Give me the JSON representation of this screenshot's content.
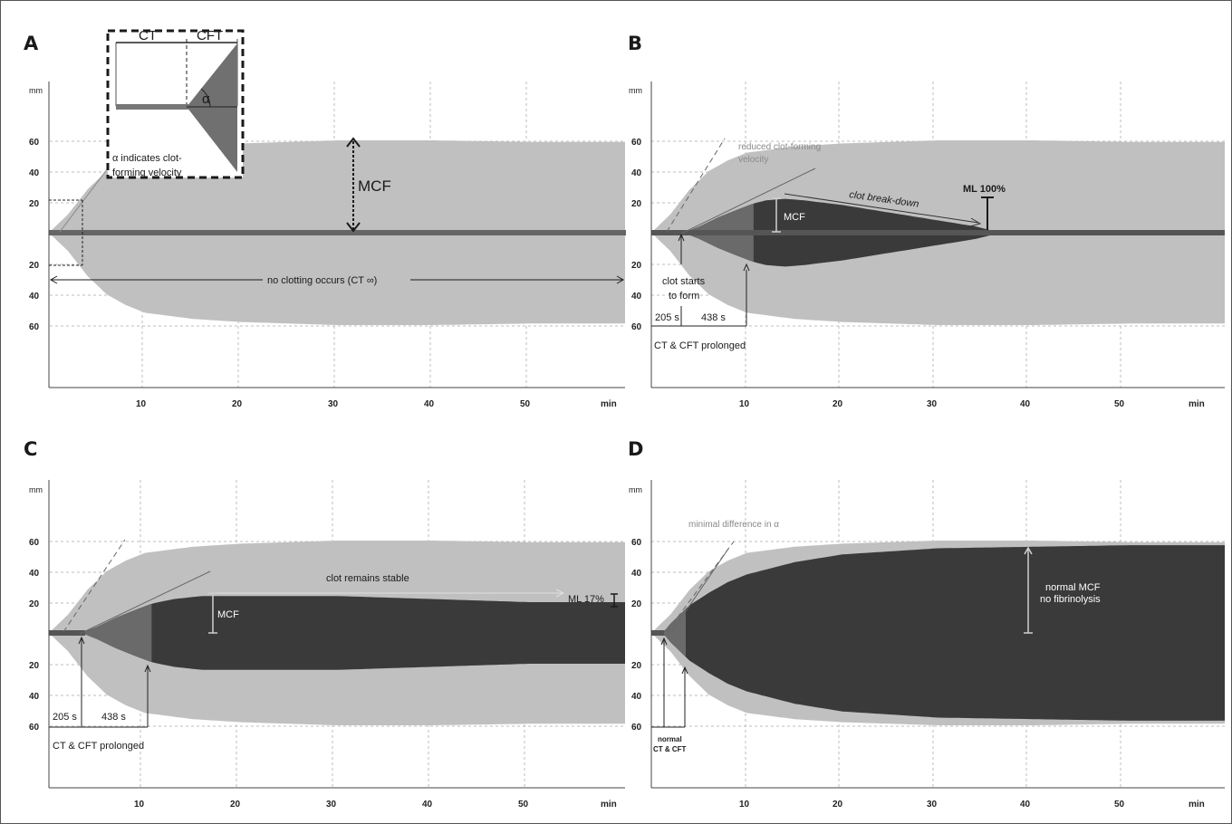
{
  "colors": {
    "envelope": "#c0c0c0",
    "clot": "#3a3a3a",
    "formation": "#6a6a6a",
    "baseline": "#555555",
    "grid": "#bdbdbd"
  },
  "chart_data": [
    {
      "type": "area",
      "panel": "A",
      "unit_y": "mm",
      "unit_x": "min",
      "x_ticks": [
        "10",
        "20",
        "30",
        "40",
        "50"
      ],
      "y_ticks_upper": [
        "60",
        "40",
        "20"
      ],
      "y_ticks_lower": [
        "20",
        "40",
        "60"
      ],
      "xlim": [
        0,
        60
      ],
      "ylim": [
        -60,
        60
      ],
      "series": [
        {
          "name": "",
          "role": "normal-envelope",
          "x": [
            0,
            2,
            4,
            6,
            8,
            10,
            15,
            20,
            25,
            30,
            40,
            50,
            60
          ],
          "amplitude": [
            0,
            12,
            28,
            40,
            47,
            52,
            56,
            58,
            59,
            60,
            60,
            59,
            59
          ]
        },
        {
          "name": "",
          "role": "patient",
          "x": [
            0,
            60
          ],
          "amplitude": [
            0,
            0
          ]
        }
      ],
      "labels": {
        "inset_ct": "CT",
        "inset_cft": "CFT",
        "inset_alpha": "α",
        "alpha_note_1": "α indicates clot-",
        "alpha_note_2": "forming  velocity",
        "mcf": "MCF",
        "no_clot": "no clotting occurs (CT ∞)"
      }
    },
    {
      "type": "area",
      "panel": "B",
      "unit_y": "mm",
      "unit_x": "min",
      "x_ticks": [
        "10",
        "20",
        "30",
        "40",
        "50"
      ],
      "y_ticks_upper": [
        "60",
        "40",
        "20"
      ],
      "y_ticks_lower": [
        "20",
        "40",
        "60"
      ],
      "xlim": [
        0,
        60
      ],
      "ylim": [
        -60,
        60
      ],
      "ct_s": 205,
      "cft_s": 438,
      "ml_percent": 100,
      "series": [
        {
          "name": "",
          "role": "normal-envelope",
          "x": [
            0,
            2,
            4,
            6,
            8,
            10,
            15,
            20,
            25,
            30,
            40,
            50,
            60
          ],
          "amplitude": [
            0,
            12,
            28,
            40,
            47,
            52,
            56,
            58,
            59,
            60,
            60,
            59,
            59
          ]
        },
        {
          "name": "",
          "role": "patient",
          "x": [
            0,
            3.4,
            5,
            7,
            9,
            10.7,
            12,
            14,
            16,
            20,
            25,
            30,
            34,
            36.5,
            60
          ],
          "amplitude": [
            0,
            0,
            4,
            10,
            15,
            19,
            21,
            22,
            21,
            18,
            13,
            8,
            4,
            0,
            0
          ]
        }
      ],
      "labels": {
        "reduced_1": "reduced clot-forming",
        "reduced_2": "velocity",
        "mcf": "MCF",
        "breakdown": "clot break-down",
        "ml": "ML 100%",
        "starts_1": "clot starts",
        "starts_2": "to form",
        "ct_box": "205 s",
        "cft_box": "438 s",
        "prolonged": "CT & CFT prolonged"
      }
    },
    {
      "type": "area",
      "panel": "C",
      "unit_y": "mm",
      "unit_x": "min",
      "x_ticks": [
        "10",
        "20",
        "30",
        "40",
        "50"
      ],
      "y_ticks_upper": [
        "60",
        "40",
        "20"
      ],
      "y_ticks_lower": [
        "20",
        "40",
        "60"
      ],
      "xlim": [
        0,
        60
      ],
      "ylim": [
        -60,
        60
      ],
      "ct_s": 205,
      "cft_s": 438,
      "ml_percent": 17,
      "series": [
        {
          "name": "",
          "role": "normal-envelope",
          "x": [
            0,
            2,
            4,
            6,
            8,
            10,
            15,
            20,
            25,
            30,
            40,
            50,
            60
          ],
          "amplitude": [
            0,
            12,
            28,
            40,
            47,
            52,
            56,
            58,
            59,
            60,
            60,
            59,
            59
          ]
        },
        {
          "name": "",
          "role": "patient",
          "x": [
            0,
            3.4,
            5,
            7,
            9,
            10.7,
            13,
            16,
            20,
            25,
            30,
            35,
            40,
            45,
            50,
            55,
            60
          ],
          "amplitude": [
            0,
            0,
            4,
            10,
            15,
            19,
            22,
            24,
            24,
            24,
            24,
            23,
            22,
            21,
            20,
            20,
            20
          ]
        }
      ],
      "labels": {
        "stable": "clot remains stable",
        "mcf": "MCF",
        "ml": "ML 17%",
        "ct_box": "205 s",
        "cft_box": "438 s",
        "prolonged": "CT & CFT prolonged"
      }
    },
    {
      "type": "area",
      "panel": "D",
      "unit_y": "mm",
      "unit_x": "min",
      "x_ticks": [
        "10",
        "20",
        "30",
        "40",
        "50"
      ],
      "y_ticks_upper": [
        "60",
        "40",
        "20"
      ],
      "y_ticks_lower": [
        "20",
        "40",
        "60"
      ],
      "xlim": [
        0,
        60
      ],
      "ylim": [
        -60,
        60
      ],
      "series": [
        {
          "name": "",
          "role": "normal-envelope",
          "x": [
            0,
            2,
            4,
            6,
            8,
            10,
            15,
            20,
            25,
            30,
            40,
            50,
            60
          ],
          "amplitude": [
            0,
            12,
            28,
            40,
            47,
            52,
            56,
            58,
            59,
            60,
            60,
            59,
            59
          ]
        },
        {
          "name": "",
          "role": "patient",
          "x": [
            0,
            1.2,
            2,
            3,
            4,
            6,
            8,
            10,
            15,
            20,
            25,
            30,
            40,
            50,
            60
          ],
          "amplitude": [
            0,
            0,
            6,
            12,
            18,
            26,
            33,
            38,
            46,
            51,
            53,
            55,
            56,
            57,
            57
          ]
        }
      ],
      "labels": {
        "minimal": "minimal difference in α",
        "normal_1": "normal MCF",
        "normal_2": "no fibrinolysis",
        "small_1": "normal",
        "small_2": "CT & CFT"
      }
    }
  ]
}
